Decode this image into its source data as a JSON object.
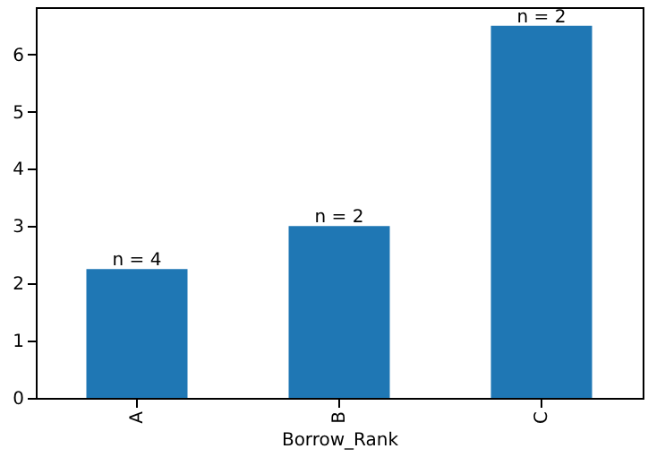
{
  "chart_data": {
    "type": "bar",
    "xlabel": "Borrow_Rank",
    "categories": [
      "A",
      "B",
      "C"
    ],
    "values": [
      2.25,
      3.0,
      6.5
    ],
    "color": "#1f77b4",
    "ylim": [
      0,
      6.825
    ],
    "yticks": [
      0,
      1,
      2,
      3,
      4,
      5,
      6
    ],
    "grid": false,
    "annotations": [
      {
        "text": "n = 4",
        "x": "A",
        "y": 2.25
      },
      {
        "text": "n = 2",
        "x": "B",
        "y": 3.0
      },
      {
        "text": "n = 2",
        "x": "C",
        "y": 6.5
      }
    ]
  }
}
